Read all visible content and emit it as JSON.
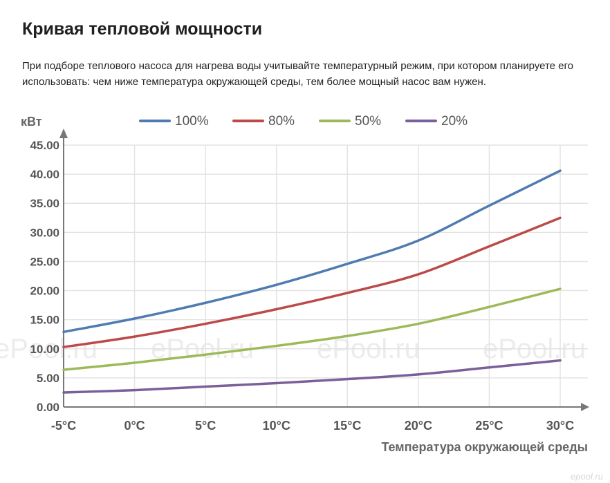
{
  "header": {
    "title": "Кривая тепловой мощности",
    "description": "При подборе теплового насоса для нагрева воды учитывайте температурный режим, при котором планируете его использовать: чем ниже температура окружающей среды, тем более мощный насос вам нужен."
  },
  "watermarks": [
    "ePool.ru",
    "ePool.ru",
    "ePool.ru",
    "ePool.ru"
  ],
  "brand_mark": "epool.ru",
  "chart_data": {
    "type": "line",
    "title": "Кривая тепловой мощности",
    "xlabel": "Температура окружающей среды",
    "ylabel": "кВт",
    "x": [
      -5,
      0,
      5,
      10,
      15,
      20,
      25,
      30
    ],
    "x_tick_labels": [
      "-5°C",
      "0°C",
      "5°C",
      "10°C",
      "15°C",
      "20°C",
      "25°C",
      "30°C"
    ],
    "y_tick_labels": [
      "0.00",
      "5.00",
      "10.00",
      "15.00",
      "20.00",
      "25.00",
      "30.00",
      "35.00",
      "40.00",
      "45.00"
    ],
    "ylim": [
      0,
      45
    ],
    "grid": true,
    "legend_position": "top",
    "series": [
      {
        "name": "100%",
        "color": "#4f7bb0",
        "values": [
          12.9,
          15.2,
          17.9,
          21.0,
          24.6,
          28.6,
          34.6,
          40.6
        ]
      },
      {
        "name": "80%",
        "color": "#bb4a48",
        "values": [
          10.3,
          12.1,
          14.3,
          16.8,
          19.6,
          22.8,
          27.6,
          32.5
        ]
      },
      {
        "name": "50%",
        "color": "#9cba59",
        "values": [
          6.4,
          7.6,
          9.0,
          10.5,
          12.2,
          14.3,
          17.2,
          20.3
        ]
      },
      {
        "name": "20%",
        "color": "#7a5f9a",
        "values": [
          2.5,
          2.9,
          3.5,
          4.1,
          4.8,
          5.6,
          6.8,
          8.0
        ]
      }
    ]
  }
}
